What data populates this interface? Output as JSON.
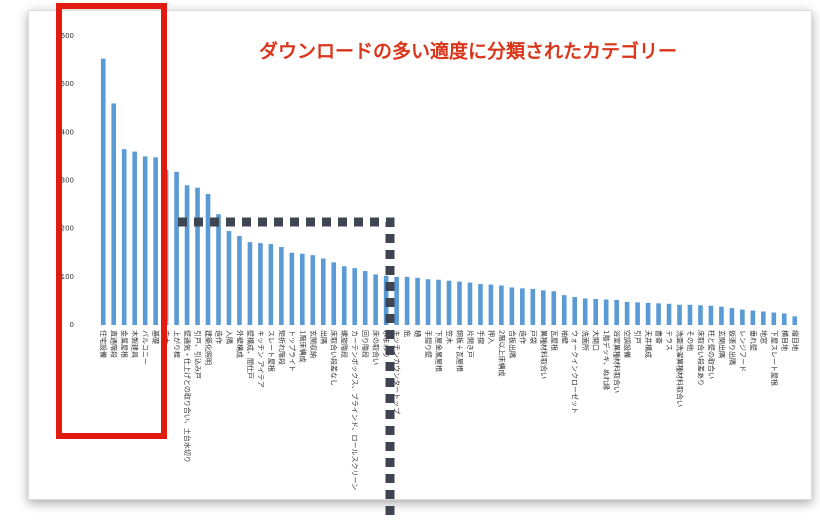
{
  "chart_data": {
    "type": "bar",
    "title": "ダウンロードの多い適度に分類されたカテゴリー",
    "categories": [
      "住宅設備",
      "直通階段",
      "金属屋根",
      "木製建具",
      "バルコニー",
      "基礎",
      "巾木",
      "上がり框",
      "壁通気・仕上げとの取り合い、土台水切り",
      "引戸、引込み戸",
      "建築化照明",
      "造作",
      "入隅",
      "外壁構成",
      "壁構成、間仕戸",
      "キッチン アイテア",
      "スレート屋根",
      "矩折れ階段",
      "トップライト",
      "1階床構成",
      "玄関収納",
      "出隅",
      "床取合い段差なし",
      "螺旋階段",
      "カーテンボックス、ブラインド、ロールスクリーン",
      "回り階段",
      "床の取合い",
      "水まわり",
      "キッチンカウンタートップ",
      "庇",
      "樋",
      "手摺り壁",
      "下屋金属屋根",
      "笠木",
      "鋼板＋瓦屋根",
      "片開き戸",
      "手摺",
      "押入",
      "2階以上床構成",
      "合板出隅",
      "造作",
      "戸袋",
      "異種材料取合い",
      "瓦屋根",
      "袖壁",
      "ウォークインクローゼット",
      "洗面所",
      "大開口",
      "1階デッキ、ぬれ縁",
      "浴室異種材料取合い",
      "空調設備",
      "引戸",
      "天井構成",
      "書斎",
      "テラス",
      "洗面洗濯異種材料取合い",
      "その他",
      "床取合い段差あり",
      "柱と壁の取合い",
      "玄関出隅",
      "仮張り出隅",
      "レンジフード",
      "垂れ壁",
      "地窓",
      "下屋スレート屋根",
      "横目地",
      "縦目地"
    ],
    "values": [
      553,
      460,
      365,
      360,
      350,
      348,
      322,
      318,
      290,
      285,
      272,
      230,
      195,
      185,
      172,
      170,
      168,
      162,
      150,
      148,
      145,
      138,
      130,
      122,
      118,
      112,
      105,
      102,
      100,
      100,
      98,
      95,
      94,
      92,
      90,
      88,
      85,
      84,
      82,
      78,
      76,
      75,
      72,
      70,
      62,
      58,
      55,
      54,
      53,
      52,
      48,
      47,
      46,
      45,
      44,
      42,
      42,
      41,
      40,
      38,
      35,
      32,
      30,
      28,
      26,
      24,
      18
    ],
    "color": "#5b9bd5",
    "ylim": [
      0,
      600
    ],
    "yticks": [
      0,
      100,
      200,
      300,
      400,
      500,
      600
    ],
    "grid": false
  }
}
